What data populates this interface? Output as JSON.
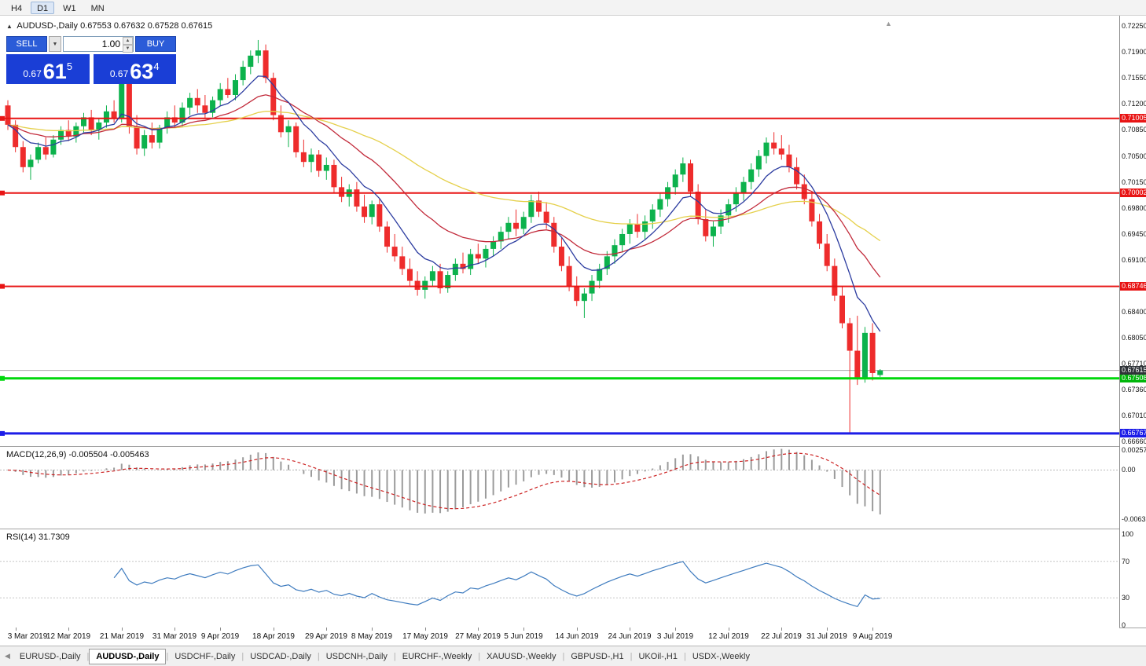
{
  "toolbar": {
    "timeframes": [
      {
        "label": "H4",
        "active": false
      },
      {
        "label": "D1",
        "active": true
      },
      {
        "label": "W1",
        "active": false
      },
      {
        "label": "MN",
        "active": false
      }
    ]
  },
  "chart": {
    "title_symbol": "AUDUSD-,Daily",
    "title_ohlc": "0.67553 0.67632 0.67528 0.67615"
  },
  "one_click": {
    "sell_label": "SELL",
    "buy_label": "BUY",
    "volume": "1.00",
    "sell_price": {
      "prefix": "0.67",
      "big": "61",
      "sup": "5"
    },
    "buy_price": {
      "prefix": "0.67",
      "big": "63",
      "sup": "4"
    }
  },
  "price_axis": {
    "ticks": [
      "0.72250",
      "0.71900",
      "0.71550",
      "0.71200",
      "0.70850",
      "0.70500",
      "0.70150",
      "0.69800",
      "0.69450",
      "0.69100",
      "0.68750",
      "0.68400",
      "0.68050",
      "0.67710",
      "0.67360",
      "0.67010",
      "0.66660"
    ]
  },
  "macd": {
    "name": "MACD(12,26,9)",
    "values": "-0.005504 -0.005463",
    "axis": [
      "0.002574",
      "0.00",
      "-0.00632"
    ],
    "range": [
      0.002574,
      -0.00632
    ],
    "params": [
      12,
      26,
      9
    ],
    "histogram_color": "#9b9b9b",
    "signal_color": "#cc2222"
  },
  "rsi": {
    "name": "RSI(14)",
    "value": "31.7309",
    "period": 14,
    "axis": [
      100,
      70,
      30,
      0
    ],
    "levels": [
      70,
      30
    ],
    "line_color": "#3f7cbf"
  },
  "tabs": [
    {
      "label": "EURUSD-,Daily",
      "active": false
    },
    {
      "label": "AUDUSD-,Daily",
      "active": true
    },
    {
      "label": "USDCHF-,Daily",
      "active": false
    },
    {
      "label": "USDCAD-,Daily",
      "active": false
    },
    {
      "label": "USDCNH-,Daily",
      "active": false
    },
    {
      "label": "EURCHF-,Weekly",
      "active": false
    },
    {
      "label": "XAUUSD-,Weekly",
      "active": false
    },
    {
      "label": "GBPUSD-,H1",
      "active": false
    },
    {
      "label": "UKOil-,H1",
      "active": false
    },
    {
      "label": "USDX-,Weekly",
      "active": false
    }
  ],
  "chart_data": {
    "type": "candlestick",
    "symbol": "AUDUSD-",
    "timeframe": "Daily",
    "y_top": 0.72366,
    "y_bottom": 0.66618,
    "up_color": "#0cb24c",
    "down_color": "#ee2c2c",
    "current_price": {
      "value": 0.67615,
      "label": "0.67615",
      "line_color": "#a8a8a8",
      "badge": "#2f3338"
    },
    "hlines": [
      {
        "price": 0.71005,
        "label": "0.71005",
        "color": "#e81414",
        "width": 2,
        "badge": "#e81414"
      },
      {
        "price": 0.70002,
        "label": "0.70002",
        "color": "#e81414",
        "width": 2,
        "badge": "#e81414"
      },
      {
        "price": 0.68746,
        "label": "0.68746",
        "color": "#e81414",
        "width": 2,
        "badge": "#e81414"
      },
      {
        "price": 0.67508,
        "label": "0.67508",
        "color": "#00d80c",
        "width": 3,
        "badge": "#00b60a"
      },
      {
        "price": 0.66767,
        "label": "0.66767",
        "color": "#1d1de8",
        "width": 3,
        "badge": "#1d1de8"
      }
    ],
    "moving_averages": [
      {
        "period": 50,
        "color": "#e5d04b"
      },
      {
        "period": 20,
        "color": "#c22b3b"
      },
      {
        "period": 8,
        "color": "#2c3ca0"
      }
    ],
    "x_labels": [
      [
        "3 Mar 2019",
        1
      ],
      [
        "12 Mar 2019",
        8
      ],
      [
        "21 Mar 2019",
        15
      ],
      [
        "31 Mar 2019",
        22
      ],
      [
        "9 Apr 2019",
        28
      ],
      [
        "18 Apr 2019",
        35
      ],
      [
        "29 Apr 2019",
        42
      ],
      [
        "8 May 2019",
        48
      ],
      [
        "17 May 2019",
        55
      ],
      [
        "27 May 2019",
        62
      ],
      [
        "5 Jun 2019",
        68
      ],
      [
        "14 Jun 2019",
        75
      ],
      [
        "24 Jun 2019",
        82
      ],
      [
        "3 Jul 2019",
        88
      ],
      [
        "12 Jul 2019",
        95
      ],
      [
        "22 Jul 2019",
        102
      ],
      [
        "31 Jul 2019",
        108
      ],
      [
        "9 Aug 2019",
        114
      ]
    ],
    "candles": [
      [
        0.7118,
        0.7125,
        0.7085,
        0.7092
      ],
      [
        0.7092,
        0.7098,
        0.7055,
        0.7062
      ],
      [
        0.7062,
        0.707,
        0.7028,
        0.7035
      ],
      [
        0.7035,
        0.7052,
        0.7018,
        0.7045
      ],
      [
        0.7045,
        0.7068,
        0.704,
        0.7062
      ],
      [
        0.7062,
        0.7075,
        0.7045,
        0.7052
      ],
      [
        0.7052,
        0.7078,
        0.7048,
        0.7072
      ],
      [
        0.7072,
        0.709,
        0.7065,
        0.7085
      ],
      [
        0.7085,
        0.7098,
        0.707,
        0.7076
      ],
      [
        0.7076,
        0.7095,
        0.7068,
        0.709
      ],
      [
        0.709,
        0.7108,
        0.7082,
        0.7102
      ],
      [
        0.7102,
        0.7112,
        0.7078,
        0.7085
      ],
      [
        0.7085,
        0.71,
        0.7072,
        0.7095
      ],
      [
        0.7095,
        0.7118,
        0.7088,
        0.711
      ],
      [
        0.711,
        0.7125,
        0.7095,
        0.71
      ],
      [
        0.71,
        0.7168,
        0.7095,
        0.7155
      ],
      [
        0.7155,
        0.7165,
        0.708,
        0.709
      ],
      [
        0.709,
        0.7105,
        0.7052,
        0.706
      ],
      [
        0.706,
        0.7085,
        0.705,
        0.7078
      ],
      [
        0.7078,
        0.7095,
        0.706,
        0.7068
      ],
      [
        0.7068,
        0.7092,
        0.706,
        0.7088
      ],
      [
        0.7088,
        0.711,
        0.708,
        0.7102
      ],
      [
        0.7102,
        0.7118,
        0.7088,
        0.7095
      ],
      [
        0.7095,
        0.7122,
        0.709,
        0.7115
      ],
      [
        0.7115,
        0.7135,
        0.7105,
        0.7128
      ],
      [
        0.7128,
        0.714,
        0.7108,
        0.7118
      ],
      [
        0.7118,
        0.7132,
        0.71,
        0.7108
      ],
      [
        0.7108,
        0.713,
        0.7102,
        0.7125
      ],
      [
        0.7125,
        0.7148,
        0.7118,
        0.714
      ],
      [
        0.714,
        0.7155,
        0.7128,
        0.7132
      ],
      [
        0.7132,
        0.716,
        0.7125,
        0.7152
      ],
      [
        0.7152,
        0.7178,
        0.7145,
        0.717
      ],
      [
        0.717,
        0.7192,
        0.716,
        0.7185
      ],
      [
        0.7185,
        0.7206,
        0.7175,
        0.7192
      ],
      [
        0.7192,
        0.72,
        0.7148,
        0.7155
      ],
      [
        0.7155,
        0.7162,
        0.7098,
        0.7105
      ],
      [
        0.7105,
        0.7118,
        0.7075,
        0.7082
      ],
      [
        0.7082,
        0.7098,
        0.7062,
        0.709
      ],
      [
        0.709,
        0.7095,
        0.7048,
        0.7055
      ],
      [
        0.7055,
        0.7072,
        0.7035,
        0.7042
      ],
      [
        0.7042,
        0.706,
        0.7028,
        0.7052
      ],
      [
        0.7052,
        0.7058,
        0.7022,
        0.703
      ],
      [
        0.703,
        0.7048,
        0.7018,
        0.7038
      ],
      [
        0.7038,
        0.7045,
        0.7,
        0.7008
      ],
      [
        0.7008,
        0.7022,
        0.6988,
        0.6995
      ],
      [
        0.6995,
        0.7012,
        0.6982,
        0.7005
      ],
      [
        0.7005,
        0.7015,
        0.6975,
        0.6982
      ],
      [
        0.6982,
        0.6998,
        0.696,
        0.6968
      ],
      [
        0.6968,
        0.699,
        0.6958,
        0.6985
      ],
      [
        0.6985,
        0.6992,
        0.6948,
        0.6955
      ],
      [
        0.6955,
        0.6962,
        0.692,
        0.6928
      ],
      [
        0.6928,
        0.6945,
        0.6908,
        0.6915
      ],
      [
        0.6915,
        0.6928,
        0.689,
        0.6898
      ],
      [
        0.6898,
        0.6912,
        0.6875,
        0.6882
      ],
      [
        0.6882,
        0.6895,
        0.6862,
        0.687
      ],
      [
        0.687,
        0.6888,
        0.6858,
        0.6882
      ],
      [
        0.6882,
        0.6902,
        0.6875,
        0.6895
      ],
      [
        0.6895,
        0.6905,
        0.6865,
        0.6872
      ],
      [
        0.6872,
        0.6895,
        0.6866,
        0.689
      ],
      [
        0.689,
        0.6912,
        0.6882,
        0.6905
      ],
      [
        0.6905,
        0.692,
        0.6892,
        0.6898
      ],
      [
        0.6898,
        0.6925,
        0.689,
        0.6918
      ],
      [
        0.6918,
        0.6932,
        0.6905,
        0.6912
      ],
      [
        0.6912,
        0.693,
        0.69,
        0.6925
      ],
      [
        0.6925,
        0.6942,
        0.6915,
        0.6935
      ],
      [
        0.6935,
        0.6955,
        0.6925,
        0.6948
      ],
      [
        0.6948,
        0.6968,
        0.6938,
        0.696
      ],
      [
        0.696,
        0.6978,
        0.6942,
        0.6952
      ],
      [
        0.6952,
        0.6975,
        0.6945,
        0.6968
      ],
      [
        0.6968,
        0.6998,
        0.696,
        0.699
      ],
      [
        0.699,
        0.7002,
        0.6968,
        0.6975
      ],
      [
        0.6975,
        0.6988,
        0.6952,
        0.696
      ],
      [
        0.696,
        0.6968,
        0.692,
        0.6928
      ],
      [
        0.6928,
        0.694,
        0.6895,
        0.6902
      ],
      [
        0.6902,
        0.6915,
        0.6868,
        0.6875
      ],
      [
        0.6875,
        0.6888,
        0.6848,
        0.6855
      ],
      [
        0.6855,
        0.6872,
        0.6832,
        0.6865
      ],
      [
        0.6865,
        0.689,
        0.6855,
        0.6882
      ],
      [
        0.6882,
        0.6905,
        0.6872,
        0.6898
      ],
      [
        0.6898,
        0.6922,
        0.689,
        0.6915
      ],
      [
        0.6915,
        0.6938,
        0.6905,
        0.693
      ],
      [
        0.693,
        0.6952,
        0.692,
        0.6945
      ],
      [
        0.6945,
        0.6965,
        0.6932,
        0.6958
      ],
      [
        0.6958,
        0.6972,
        0.694,
        0.6948
      ],
      [
        0.6948,
        0.697,
        0.6938,
        0.6962
      ],
      [
        0.6962,
        0.6985,
        0.6952,
        0.6978
      ],
      [
        0.6978,
        0.7,
        0.6968,
        0.6992
      ],
      [
        0.6992,
        0.7015,
        0.6982,
        0.7008
      ],
      [
        0.7008,
        0.7032,
        0.6998,
        0.7025
      ],
      [
        0.7025,
        0.7048,
        0.7015,
        0.704
      ],
      [
        0.704,
        0.7045,
        0.6995,
        0.7002
      ],
      [
        0.7002,
        0.7012,
        0.6958,
        0.6965
      ],
      [
        0.6965,
        0.6978,
        0.6935,
        0.6942
      ],
      [
        0.6942,
        0.6962,
        0.6928,
        0.6955
      ],
      [
        0.6955,
        0.6978,
        0.6945,
        0.697
      ],
      [
        0.697,
        0.6992,
        0.696,
        0.6985
      ],
      [
        0.6985,
        0.7008,
        0.6975,
        0.7
      ],
      [
        0.7,
        0.7022,
        0.699,
        0.7015
      ],
      [
        0.7015,
        0.704,
        0.7005,
        0.7032
      ],
      [
        0.7032,
        0.7058,
        0.7022,
        0.705
      ],
      [
        0.705,
        0.7075,
        0.704,
        0.7068
      ],
      [
        0.7068,
        0.7082,
        0.7052,
        0.706
      ],
      [
        0.706,
        0.7078,
        0.7045,
        0.7052
      ],
      [
        0.7052,
        0.7065,
        0.7028,
        0.7035
      ],
      [
        0.7035,
        0.7048,
        0.7005,
        0.7012
      ],
      [
        0.7012,
        0.7025,
        0.6985,
        0.6992
      ],
      [
        0.6992,
        0.7002,
        0.6955,
        0.6962
      ],
      [
        0.6962,
        0.6972,
        0.6925,
        0.6932
      ],
      [
        0.6932,
        0.6945,
        0.6895,
        0.6902
      ],
      [
        0.6902,
        0.6912,
        0.6855,
        0.6862
      ],
      [
        0.6862,
        0.6875,
        0.6818,
        0.6825
      ],
      [
        0.6825,
        0.6832,
        0.6677,
        0.6788
      ],
      [
        0.6788,
        0.6835,
        0.6742,
        0.6752
      ],
      [
        0.6752,
        0.682,
        0.6745,
        0.6812
      ],
      [
        0.6812,
        0.6825,
        0.6748,
        0.6758
      ],
      [
        0.67553,
        0.67632,
        0.67528,
        0.67615
      ]
    ]
  }
}
